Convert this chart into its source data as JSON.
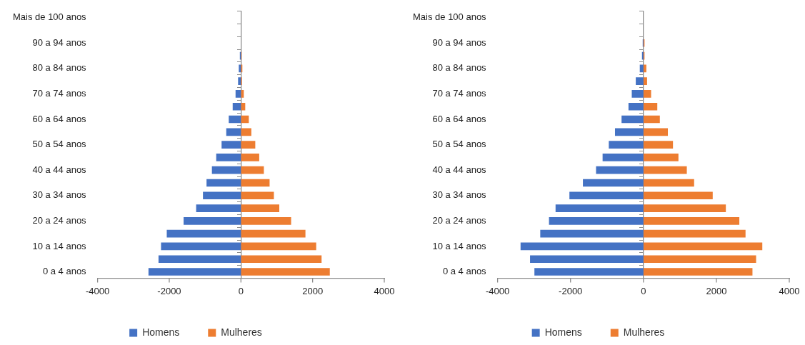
{
  "chart_data": [
    {
      "type": "bar",
      "orientation": "horizontal",
      "stacked": true,
      "legend": "bottom",
      "categories": [
        "Mais de 100 anos",
        null,
        "90 a 94 anos",
        null,
        "80 a 84 anos",
        null,
        "70 a 74 anos",
        null,
        "60 a 64 anos",
        null,
        "50 a 54 anos",
        null,
        "40 a 44 anos",
        null,
        "30 a 34 anos",
        null,
        "20 a 24 anos",
        null,
        "10 a 14 anos",
        null,
        "0 a 4 anos"
      ],
      "series": [
        {
          "name": "Homens",
          "color": "#4472c4",
          "values": [
            0,
            0,
            0,
            -30,
            -60,
            -80,
            -150,
            -230,
            -340,
            -410,
            -540,
            -690,
            -810,
            -960,
            -1060,
            -1250,
            -1600,
            -2070,
            -2230,
            -2300,
            -2580
          ]
        },
        {
          "name": "Mulheres",
          "color": "#ed7d31",
          "values": [
            0,
            0,
            0,
            20,
            40,
            30,
            80,
            120,
            220,
            290,
            400,
            510,
            640,
            800,
            920,
            1070,
            1400,
            1800,
            2100,
            2250,
            2480
          ]
        }
      ],
      "xlim": [
        -4000,
        4000
      ],
      "xticks": [
        -4000,
        -2000,
        0,
        2000,
        4000
      ]
    },
    {
      "type": "bar",
      "orientation": "horizontal",
      "stacked": true,
      "legend": "bottom",
      "categories": [
        "Mais de 100 anos",
        null,
        "90 a 94 anos",
        null,
        "80 a 84 anos",
        null,
        "70 a 74 anos",
        null,
        "60 a 64 anos",
        null,
        "50 a 54 anos",
        null,
        "40 a 44 anos",
        null,
        "30 a 34 anos",
        null,
        "20 a 24 anos",
        null,
        "10 a 14 anos",
        null,
        "0 a 4 anos"
      ],
      "series": [
        {
          "name": "Homens",
          "color": "#4472c4",
          "values": [
            0,
            0,
            -20,
            -40,
            -100,
            -210,
            -320,
            -410,
            -600,
            -780,
            -950,
            -1120,
            -1300,
            -1660,
            -2030,
            -2410,
            -2590,
            -2830,
            -3370,
            -3110,
            -2990
          ]
        },
        {
          "name": "Mulheres",
          "color": "#ed7d31",
          "values": [
            0,
            0,
            30,
            30,
            80,
            100,
            210,
            380,
            450,
            670,
            810,
            960,
            1190,
            1390,
            1900,
            2260,
            2630,
            2800,
            3260,
            3090,
            2990
          ]
        }
      ],
      "xlim": [
        -4000,
        4000
      ],
      "xticks": [
        -4000,
        -2000,
        0,
        2000,
        4000
      ]
    }
  ]
}
